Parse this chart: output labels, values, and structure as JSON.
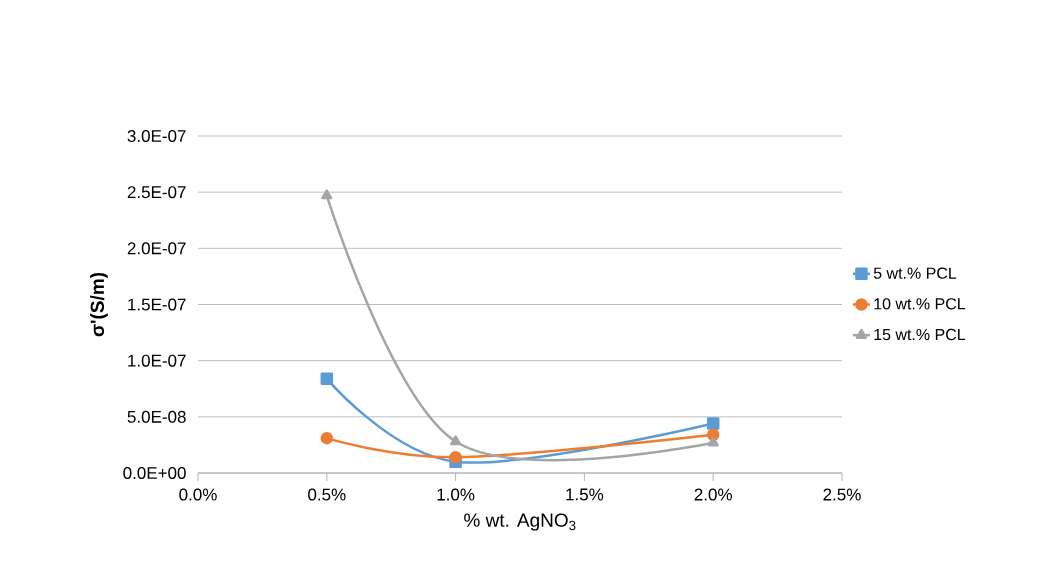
{
  "chart_data": {
    "type": "line",
    "xlabel": "% wt. AgNO$_{3}$",
    "ylabel": "σ'(S/m)",
    "x": [
      0.5,
      1.0,
      2.0
    ],
    "series": [
      {
        "name": "5 wt.% PCL",
        "color": "#5b9bd5",
        "marker": "square",
        "values": [
          8.4e-08,
          1e-08,
          4.4e-08
        ]
      },
      {
        "name": "10 wt.% PCL",
        "color": "#ed7d31",
        "marker": "circle",
        "values": [
          3.1e-08,
          1.4e-08,
          3.4e-08
        ]
      },
      {
        "name": "15 wt.% PCL",
        "color": "#a5a5a5",
        "marker": "triangle",
        "values": [
          2.47e-07,
          2.8e-08,
          2.7e-08
        ]
      }
    ],
    "xlim": [
      0,
      2.5
    ],
    "ylim": [
      0,
      3e-07
    ],
    "xticks": [
      {
        "value": 0,
        "label": "0.0%"
      },
      {
        "value": 0.5,
        "label": "0.5%"
      },
      {
        "value": 1.0,
        "label": "1.0%"
      },
      {
        "value": 1.5,
        "label": "1.5%"
      },
      {
        "value": 2.0,
        "label": "2.0%"
      },
      {
        "value": 2.5,
        "label": "2.5%"
      }
    ],
    "yticks": [
      {
        "value": 0,
        "label": "0.0E+00"
      },
      {
        "value": 5e-08,
        "label": "5.0E-08"
      },
      {
        "value": 1e-07,
        "label": "1.0E-07"
      },
      {
        "value": 1.5e-07,
        "label": "1.5E-07"
      },
      {
        "value": 2e-07,
        "label": "2.0E-07"
      },
      {
        "value": 2.5e-07,
        "label": "2.5E-07"
      },
      {
        "value": 3e-07,
        "label": "3.0E-07"
      }
    ],
    "grid": "y",
    "legend": "right",
    "line_style": "solid"
  }
}
